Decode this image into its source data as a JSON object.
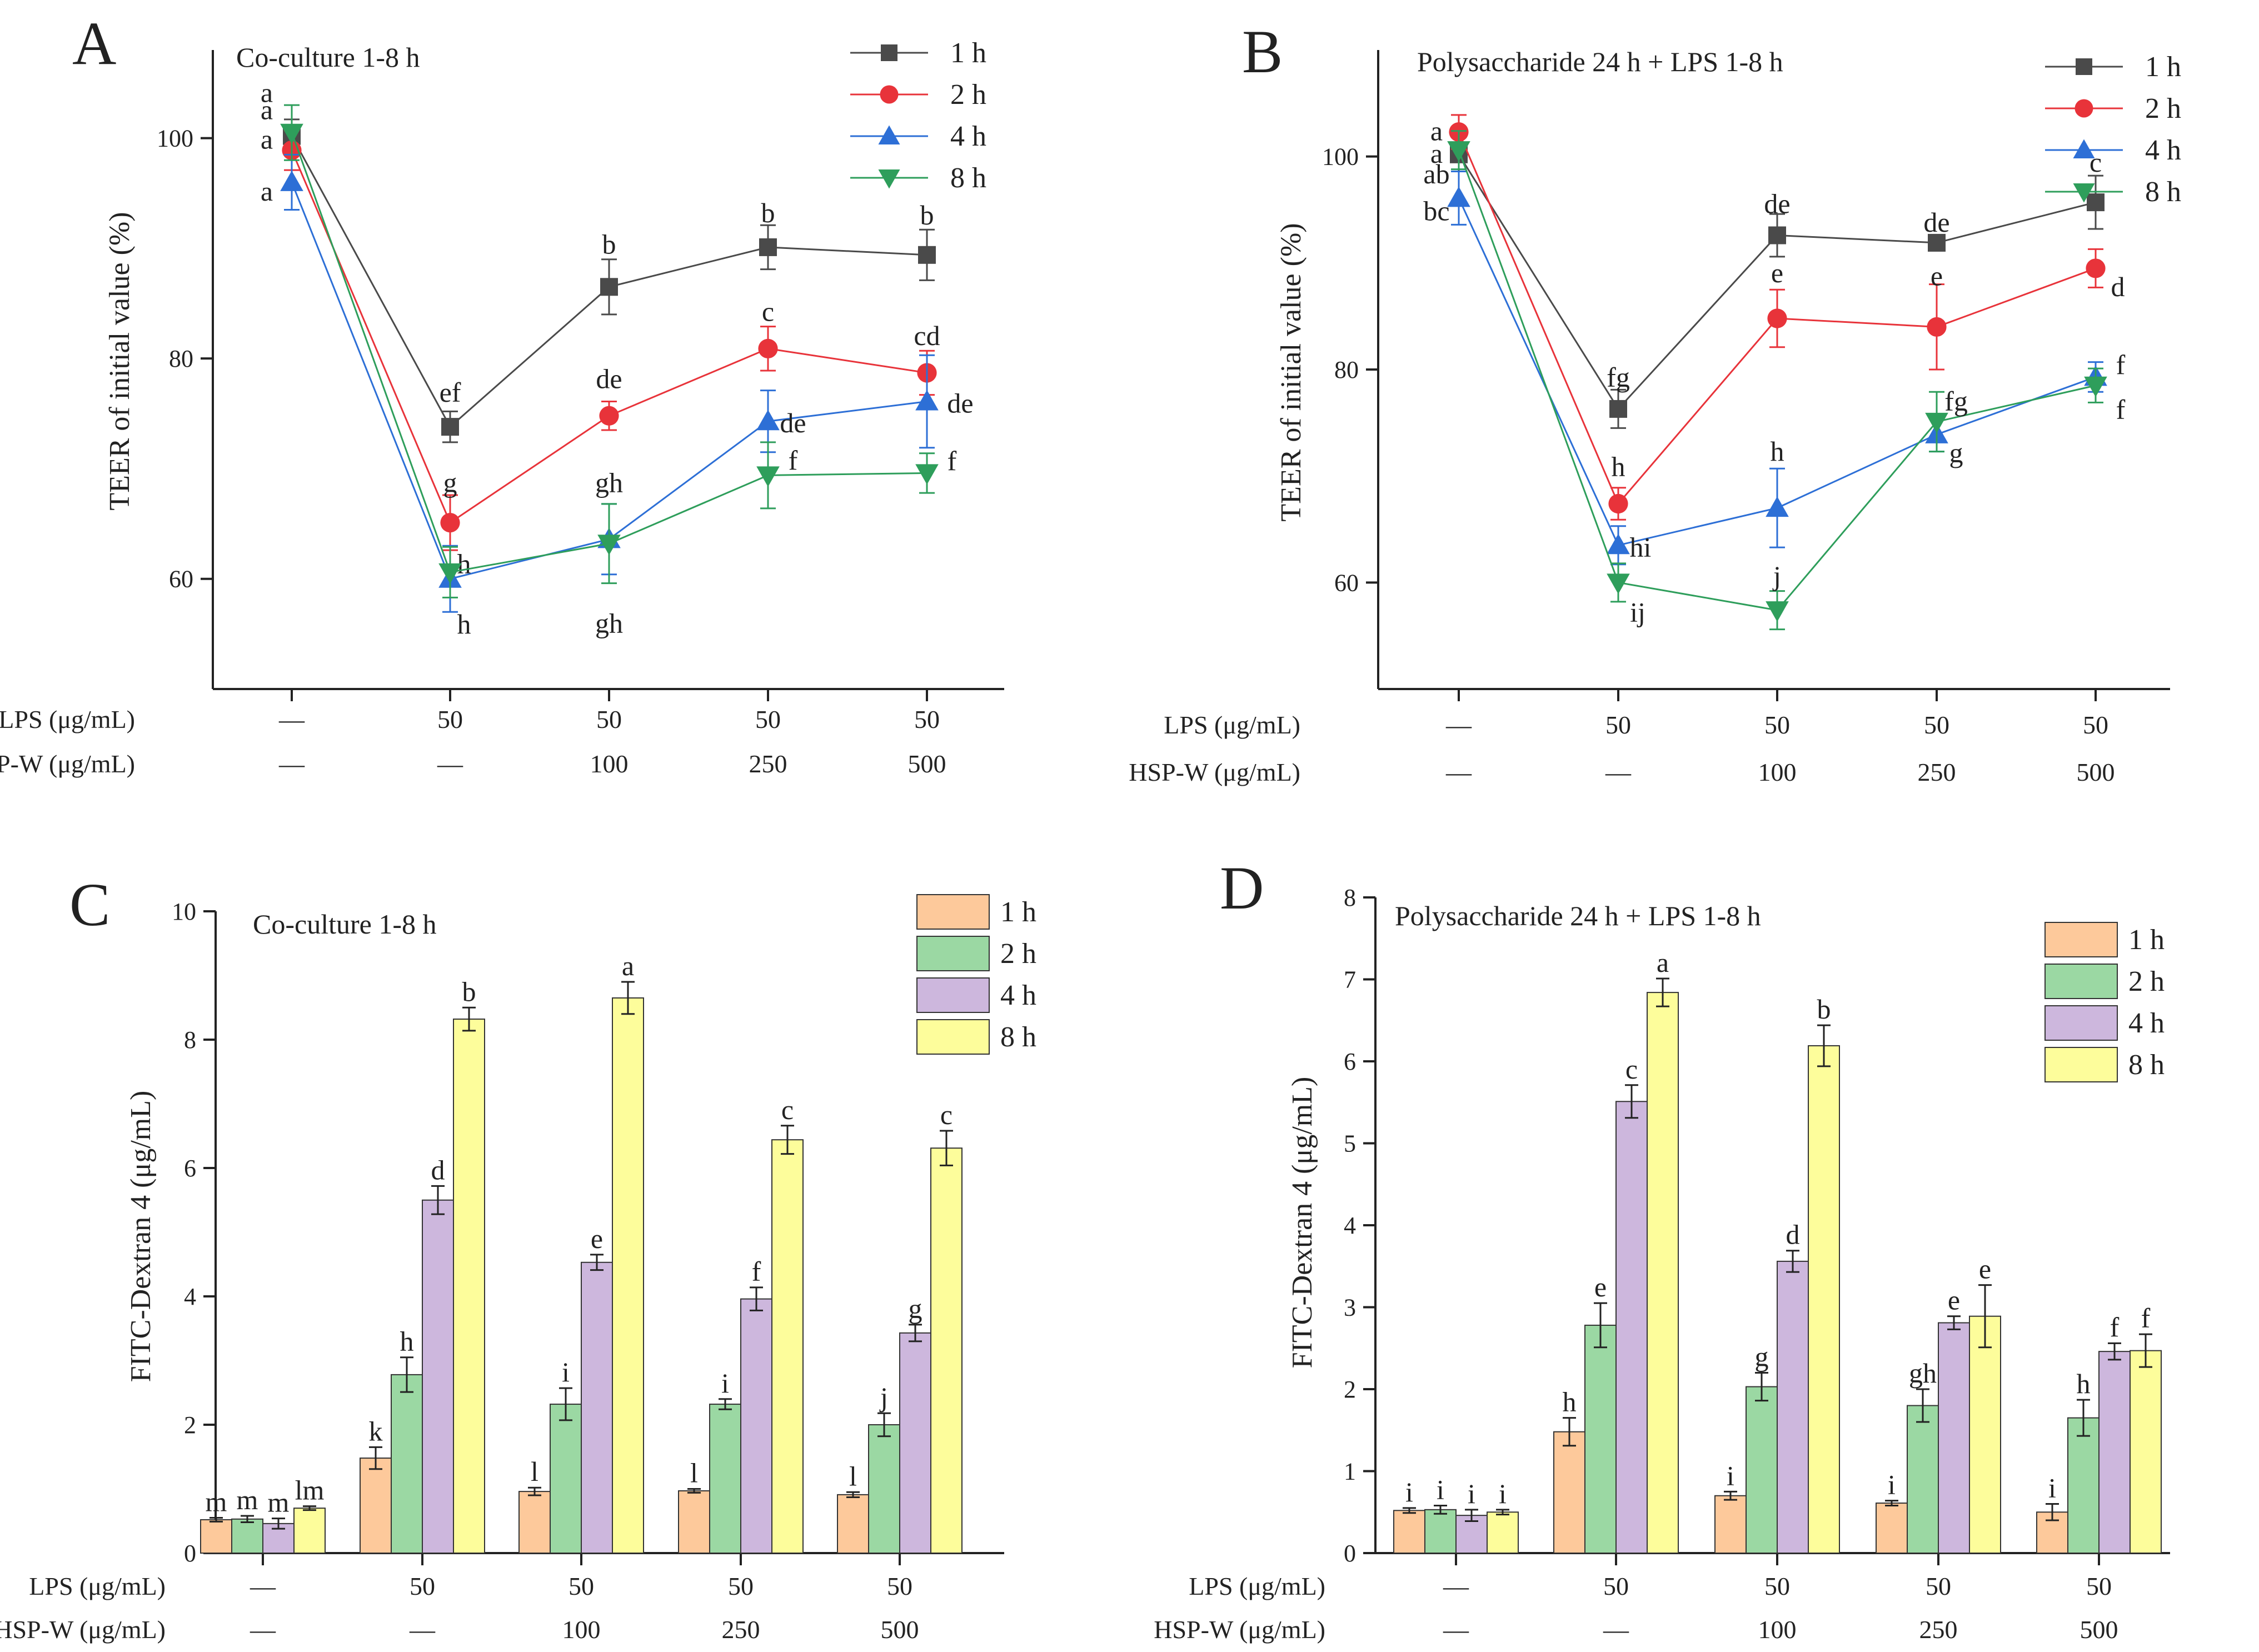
{
  "conditions": {
    "lps_label": "LPS (μg/mL)",
    "hsp_label": "HSP-W (μg/mL)",
    "lps": [
      "—",
      "50",
      "50",
      "50",
      "50"
    ],
    "hsp": [
      "—",
      "—",
      "100",
      "250",
      "500"
    ]
  },
  "chart_data": [
    {
      "panel": "A",
      "type": "line",
      "title": "Co-culture 1-8 h",
      "ylabel": "TEER of initial value (%)",
      "ylim": [
        50,
        108
      ],
      "yticks": [
        60,
        80,
        100
      ],
      "x": [
        0,
        1,
        2,
        3,
        4
      ],
      "series": [
        {
          "name": "1 h",
          "color": "#4a4a4a",
          "marker": "square",
          "values": [
            100.2,
            73.8,
            86.5,
            90.1,
            89.4
          ],
          "errors": [
            1.5,
            1.4,
            2.5,
            2.0,
            2.3
          ],
          "labels": [
            "a",
            "ef",
            "b",
            "b",
            "b"
          ]
        },
        {
          "name": "2 h",
          "color": "#e8333a",
          "marker": "circle",
          "values": [
            98.9,
            65.1,
            74.8,
            80.9,
            78.7
          ],
          "errors": [
            1.8,
            2.5,
            1.3,
            2.0,
            2.0
          ],
          "labels": [
            "a",
            "g",
            "de",
            "c",
            "cd"
          ]
        },
        {
          "name": "4 h",
          "color": "#2d6fd6",
          "marker": "triangle-up",
          "values": [
            96.0,
            60.0,
            63.6,
            74.3,
            76.1
          ],
          "errors": [
            2.5,
            3.0,
            3.2,
            2.8,
            4.2
          ],
          "labels": [
            "a",
            "h",
            "gh",
            "de",
            "de"
          ]
        },
        {
          "name": "8 h",
          "color": "#2e9e5b",
          "marker": "triangle-down",
          "values": [
            100.5,
            60.6,
            63.2,
            69.4,
            69.6
          ],
          "errors": [
            2.5,
            2.3,
            3.6,
            3.0,
            1.8
          ],
          "labels": [
            "a",
            "h",
            "gh",
            "f",
            "f"
          ]
        }
      ]
    },
    {
      "panel": "B",
      "type": "line",
      "title": "Polysaccharide 24 h + LPS 1-8 h",
      "ylabel": "TEER of initial value (%)",
      "ylim": [
        50,
        110
      ],
      "yticks": [
        60,
        80,
        100
      ],
      "x": [
        0,
        1,
        2,
        3,
        4
      ],
      "series": [
        {
          "name": "1 h",
          "color": "#4a4a4a",
          "marker": "square",
          "values": [
            100.2,
            76.3,
            92.6,
            91.9,
            95.7
          ],
          "errors": [
            1.6,
            1.8,
            2.0,
            0.6,
            2.5
          ],
          "labels": [
            "a",
            "fg",
            "de",
            "de",
            "c"
          ]
        },
        {
          "name": "2 h",
          "color": "#e8333a",
          "marker": "circle",
          "values": [
            102.3,
            67.4,
            84.8,
            84.0,
            89.5
          ],
          "errors": [
            1.6,
            1.5,
            2.7,
            4.0,
            1.8
          ],
          "labels": [
            "a",
            "h",
            "e",
            "e",
            "d"
          ]
        },
        {
          "name": "4 h",
          "color": "#2d6fd6",
          "marker": "triangle-up",
          "values": [
            96.1,
            63.5,
            67.0,
            73.9,
            79.3
          ],
          "errors": [
            2.5,
            1.8,
            3.7,
            1.6,
            1.4
          ],
          "labels": [
            "bc",
            "hi",
            "h",
            "g",
            "f"
          ]
        },
        {
          "name": "8 h",
          "color": "#2e9e5b",
          "marker": "triangle-down",
          "values": [
            100.6,
            60.0,
            57.4,
            75.1,
            78.5
          ],
          "errors": [
            1.8,
            1.8,
            1.8,
            2.8,
            1.6
          ],
          "labels": [
            "ab",
            "ij",
            "j",
            "fg",
            "f"
          ]
        }
      ]
    },
    {
      "panel": "C",
      "type": "bar",
      "title": "Co-culture 1-8 h",
      "ylabel": "FITC-Dextran 4 (μg/mL)",
      "ylim": [
        0,
        10
      ],
      "yticks": [
        0,
        2,
        4,
        6,
        8,
        10
      ],
      "series": [
        {
          "name": "1 h",
          "color": "#fdc99b",
          "values": [
            0.52,
            1.48,
            0.96,
            0.97,
            0.91
          ],
          "errors": [
            0.03,
            0.17,
            0.06,
            0.03,
            0.04
          ],
          "labels": [
            "m",
            "k",
            "l",
            "l",
            "l"
          ]
        },
        {
          "name": "2 h",
          "color": "#9bd8a3",
          "values": [
            0.53,
            2.78,
            2.32,
            2.32,
            2.0
          ],
          "errors": [
            0.05,
            0.27,
            0.25,
            0.08,
            0.18
          ],
          "labels": [
            "m",
            "h",
            "i",
            "i",
            "j"
          ]
        },
        {
          "name": "4 h",
          "color": "#cdb7dd",
          "values": [
            0.46,
            5.5,
            4.53,
            3.96,
            3.43
          ],
          "errors": [
            0.08,
            0.22,
            0.12,
            0.18,
            0.13
          ],
          "labels": [
            "m",
            "d",
            "e",
            "f",
            "g"
          ]
        },
        {
          "name": "8 h",
          "color": "#fdfd9b",
          "values": [
            0.7,
            8.32,
            8.65,
            6.44,
            6.31
          ],
          "errors": [
            0.03,
            0.18,
            0.25,
            0.22,
            0.27
          ],
          "labels": [
            "lm",
            "b",
            "a",
            "c",
            "c"
          ]
        }
      ]
    },
    {
      "panel": "D",
      "type": "bar",
      "title": "Polysaccharide 24 h + LPS 1-8 h",
      "ylabel": "FITC-Dextran 4 (μg/mL)",
      "ylim": [
        0,
        8
      ],
      "yticks": [
        0,
        1,
        2,
        3,
        4,
        5,
        6,
        7,
        8
      ],
      "series": [
        {
          "name": "1 h",
          "color": "#fdc99b",
          "values": [
            0.52,
            1.48,
            0.7,
            0.61,
            0.5
          ],
          "errors": [
            0.03,
            0.17,
            0.05,
            0.03,
            0.1
          ],
          "labels": [
            "i",
            "h",
            "i",
            "i",
            "i"
          ]
        },
        {
          "name": "2 h",
          "color": "#9bd8a3",
          "values": [
            0.53,
            2.78,
            2.03,
            1.8,
            1.65
          ],
          "errors": [
            0.05,
            0.27,
            0.17,
            0.2,
            0.22
          ],
          "labels": [
            "i",
            "e",
            "g",
            "gh",
            "h"
          ]
        },
        {
          "name": "4 h",
          "color": "#cdb7dd",
          "values": [
            0.46,
            5.51,
            3.56,
            2.81,
            2.46
          ],
          "errors": [
            0.07,
            0.2,
            0.13,
            0.08,
            0.1
          ],
          "labels": [
            "i",
            "c",
            "d",
            "e",
            "f"
          ]
        },
        {
          "name": "8 h",
          "color": "#fdfd9b",
          "values": [
            0.5,
            6.84,
            6.19,
            2.89,
            2.47
          ],
          "errors": [
            0.03,
            0.17,
            0.25,
            0.38,
            0.2
          ],
          "labels": [
            "i",
            "a",
            "b",
            "e",
            "f"
          ]
        }
      ]
    }
  ]
}
